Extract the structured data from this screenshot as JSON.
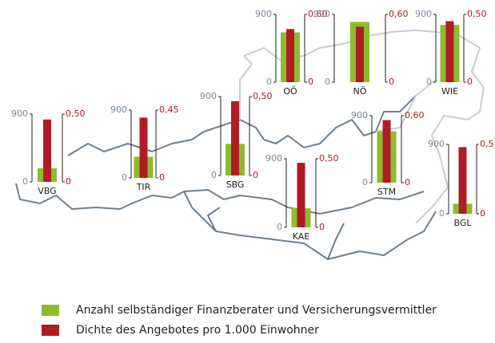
{
  "legend": [
    {
      "name": "Anzahl selbständiger Finanzberater und Versicherungsvermittler",
      "color": "#8dbb2e"
    },
    {
      "name": "Dichte des Angebotes pro 1.000 Einwohner",
      "color": "#b01c24"
    }
  ],
  "chart_data": [
    {
      "type": "bar",
      "categories": [
        "VBG"
      ],
      "ylim": [
        0,
        900
      ],
      "yticks": [
        0,
        900
      ],
      "y2lim": [
        0,
        0.5
      ],
      "y2ticks": [
        0,
        {
          "value": 0.5,
          "label": "0,50"
        }
      ],
      "series": [
        {
          "values": [
            180
          ]
        },
        {
          "values": [
            0.46
          ],
          "axis": "y2"
        }
      ]
    },
    {
      "type": "bar",
      "categories": [
        "TIR"
      ],
      "ylim": [
        0,
        900
      ],
      "yticks": [
        0,
        900
      ],
      "y2lim": [
        0,
        0.45
      ],
      "y2ticks": [
        0,
        {
          "value": 0.45,
          "label": "0,45"
        }
      ],
      "series": [
        {
          "values": [
            280
          ]
        },
        {
          "values": [
            0.4
          ],
          "axis": "y2"
        }
      ]
    },
    {
      "type": "bar",
      "categories": [
        "SBG"
      ],
      "ylim": [
        0,
        900
      ],
      "yticks": [
        0,
        900
      ],
      "y2lim": [
        0,
        0.5
      ],
      "y2ticks": [
        0,
        {
          "value": 0.5,
          "label": "0,50"
        }
      ],
      "series": [
        {
          "values": [
            360
          ]
        },
        {
          "values": [
            0.47
          ],
          "axis": "y2"
        }
      ]
    },
    {
      "type": "bar",
      "categories": [
        "KAE"
      ],
      "ylim": [
        0,
        900
      ],
      "yticks": [
        0,
        900
      ],
      "y2lim": [
        0,
        0.5
      ],
      "y2ticks": [
        0,
        {
          "value": 0.5,
          "label": "0,50"
        }
      ],
      "series": [
        {
          "values": [
            250
          ]
        },
        {
          "values": [
            0.47
          ],
          "axis": "y2"
        }
      ]
    },
    {
      "type": "bar",
      "categories": [
        "STM"
      ],
      "ylim": [
        0,
        900
      ],
      "yticks": [
        0,
        900
      ],
      "y2lim": [
        0,
        0.6
      ],
      "y2ticks": [
        0,
        {
          "value": 0.6,
          "label": "0,60"
        }
      ],
      "series": [
        {
          "values": [
            690
          ]
        },
        {
          "values": [
            0.56
          ],
          "axis": "y2"
        }
      ]
    },
    {
      "type": "bar",
      "categories": [
        "BGL"
      ],
      "ylim": [
        0,
        900
      ],
      "yticks": [
        0,
        900
      ],
      "y2lim": [
        0,
        0.5
      ],
      "y2ticks": [
        0,
        {
          "value": 0.5,
          "label": "0,5"
        }
      ],
      "series": [
        {
          "values": [
            130
          ]
        },
        {
          "values": [
            0.48
          ],
          "axis": "y2"
        }
      ]
    },
    {
      "type": "bar",
      "categories": [
        "OÖ"
      ],
      "ylim": [
        0,
        900
      ],
      "yticks": [
        0,
        900
      ],
      "y2lim": [
        0,
        0.6
      ],
      "y2ticks": [
        0,
        {
          "value": 0.6,
          "label": "0,60"
        }
      ],
      "series": [
        {
          "values": [
            660
          ]
        },
        {
          "values": [
            0.47
          ],
          "axis": "y2"
        }
      ]
    },
    {
      "type": "bar",
      "categories": [
        "NÖ"
      ],
      "ylim": [
        0,
        900
      ],
      "yticks": [
        0,
        900
      ],
      "y2lim": [
        0,
        0.6
      ],
      "y2ticks": [
        0,
        {
          "value": 0.6,
          "label": "0,60"
        }
      ],
      "series": [
        {
          "values": [
            800
          ]
        },
        {
          "values": [
            0.49
          ],
          "axis": "y2"
        }
      ]
    },
    {
      "type": "bar",
      "categories": [
        "WIE"
      ],
      "ylim": [
        0,
        900
      ],
      "yticks": [
        0,
        900
      ],
      "y2lim": [
        0,
        0.5
      ],
      "y2ticks": [
        0,
        {
          "value": 0.5,
          "label": "0,50"
        }
      ],
      "series": [
        {
          "values": [
            760
          ]
        },
        {
          "values": [
            0.45
          ],
          "axis": "y2"
        }
      ]
    }
  ]
}
